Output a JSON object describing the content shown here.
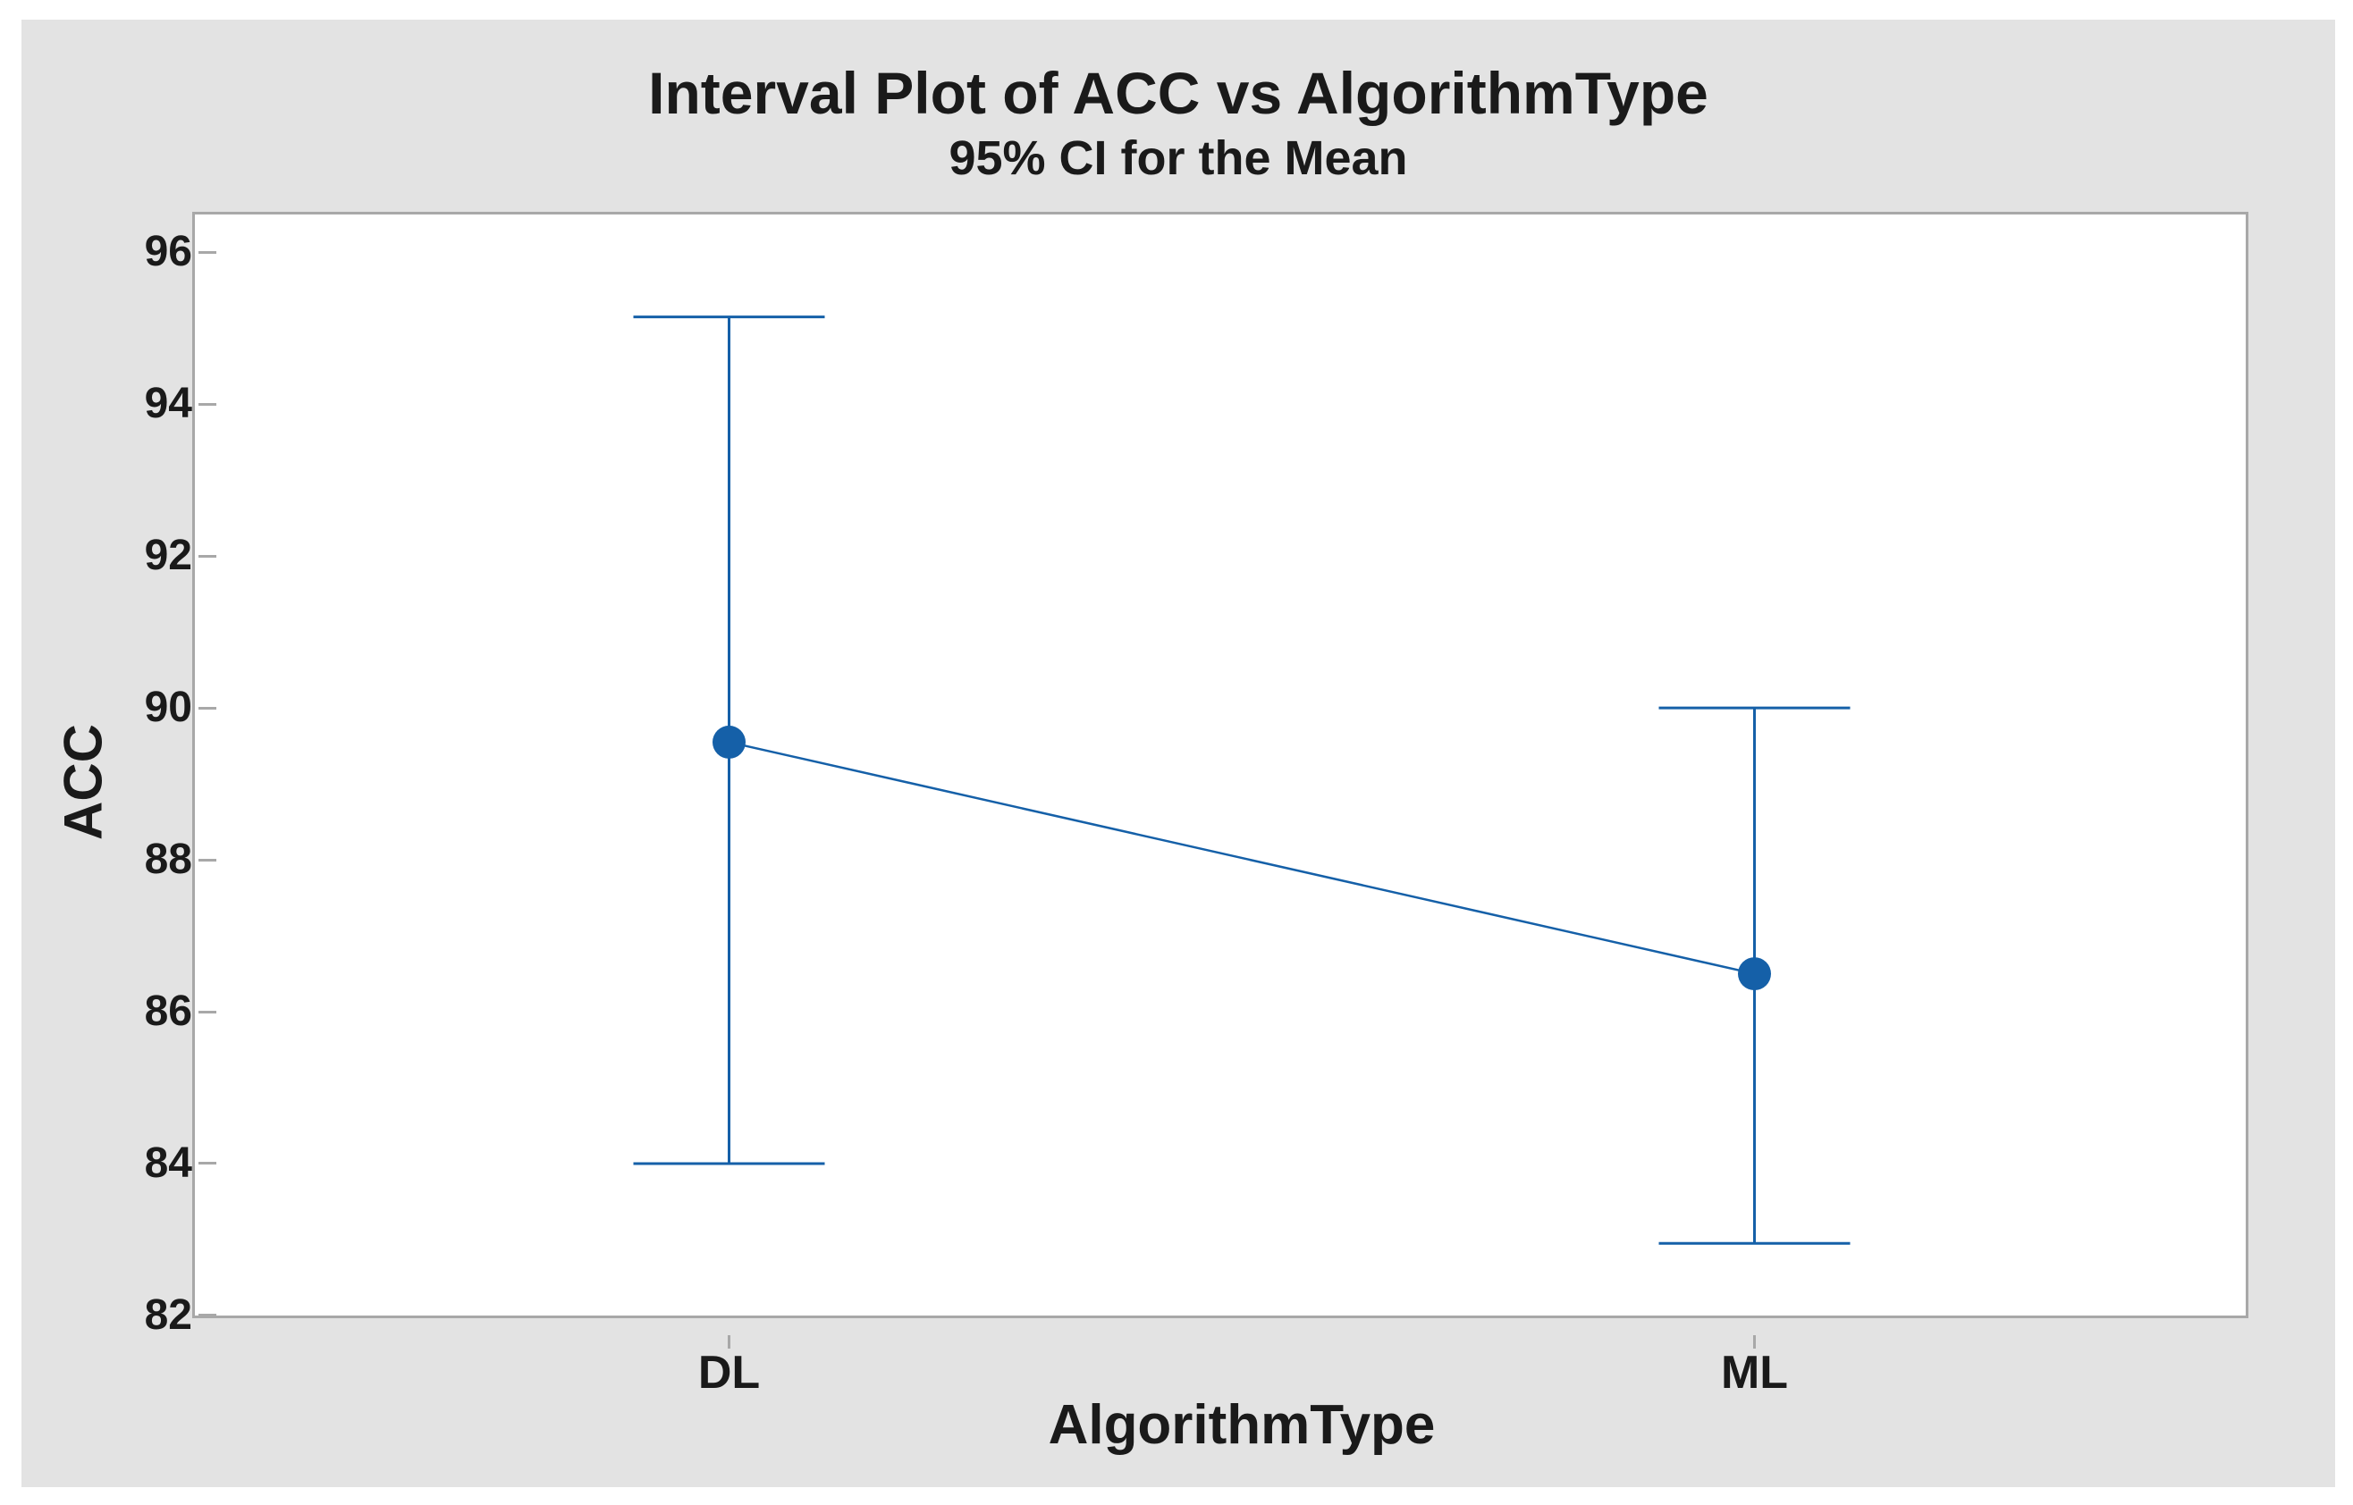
{
  "colors": {
    "accent_blue": "#1560A8",
    "panel_background": "#E3E3E3",
    "plot_background": "#FFFFFF",
    "axis_gray": "#A8A8A8",
    "text_color": "#1A1A1A"
  },
  "chart": {
    "title": "Interval Plot of ACC vs AlgorithmType",
    "subtitle": "95% CI for the Mean",
    "xlabel": "AlgorithmType",
    "ylabel": "ACC"
  },
  "chart_data": {
    "type": "interval-plot",
    "title": "Interval Plot of ACC vs AlgorithmType",
    "subtitle": "95% CI for the Mean",
    "xlabel": "AlgorithmType",
    "ylabel": "ACC",
    "categories": [
      "DL",
      "ML"
    ],
    "points": [
      {
        "category": "DL",
        "mean": 89.55,
        "ci_lower": 84.0,
        "ci_upper": 95.15
      },
      {
        "category": "ML",
        "mean": 86.5,
        "ci_lower": 82.95,
        "ci_upper": 90.0
      }
    ],
    "interval_label": "95% CI for the Mean",
    "ylim": [
      81.74,
      96.24
    ],
    "yticks": [
      82,
      84,
      86,
      88,
      90,
      92,
      94,
      96
    ],
    "grid": false,
    "legend": false,
    "connect_means": true,
    "marker": "filled-circle"
  }
}
